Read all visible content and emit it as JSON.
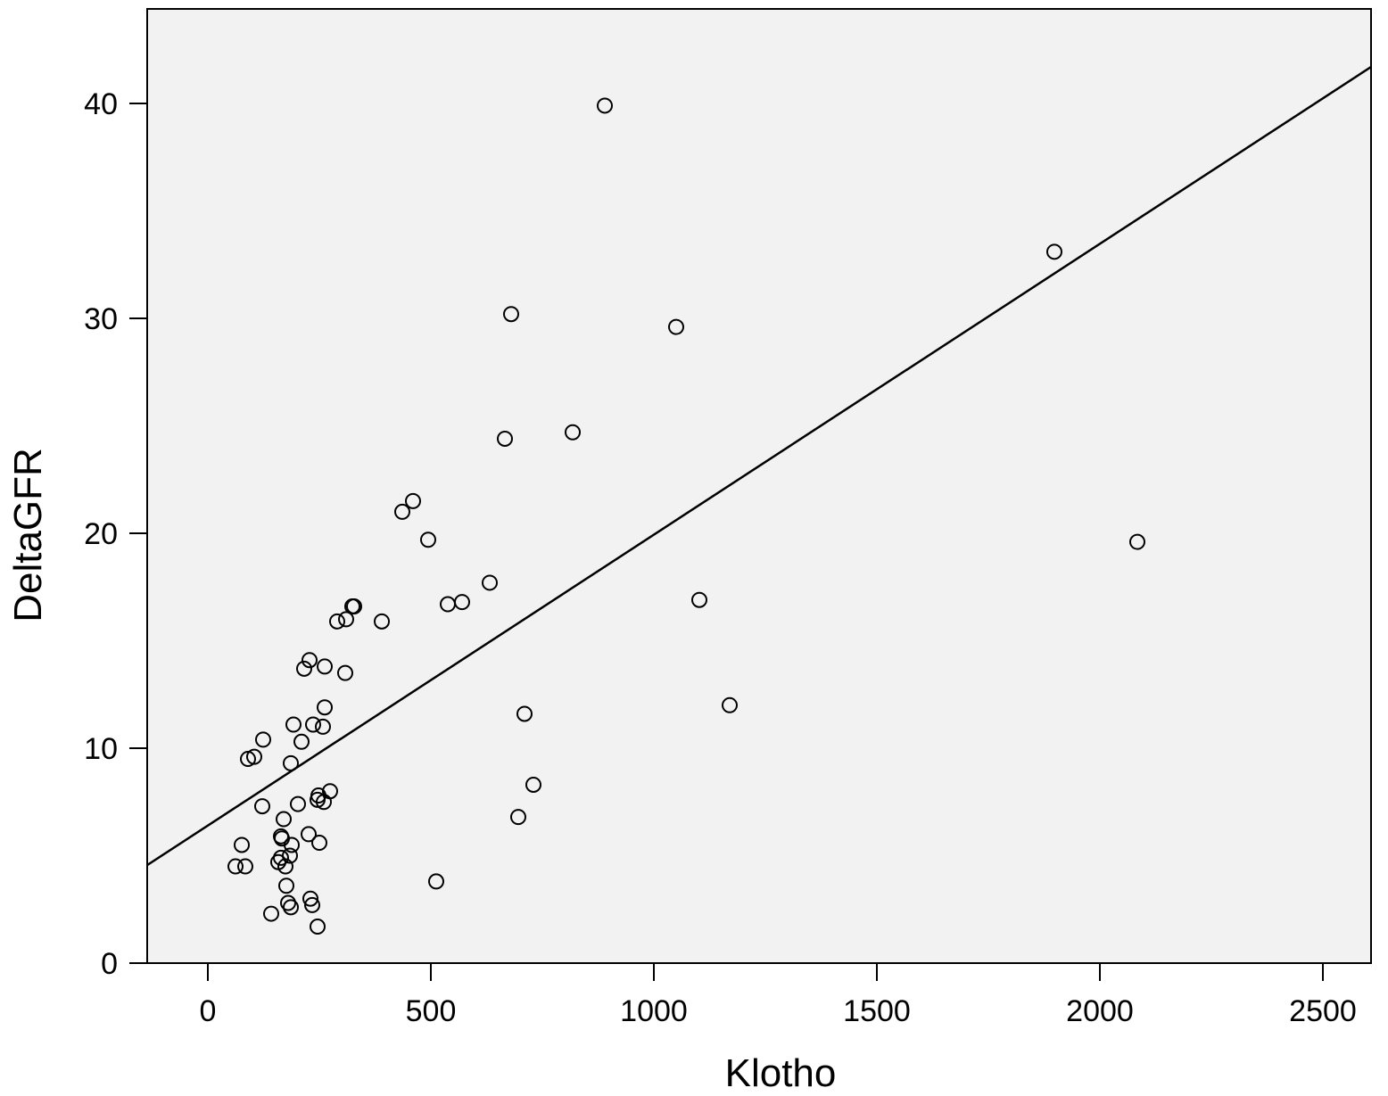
{
  "chart_data": {
    "type": "scatter",
    "x_label": "Klotho",
    "y_label": "DeltaGFR",
    "x": [
      890,
      1898,
      680,
      1050,
      666,
      818,
      460,
      436,
      494,
      2084,
      632,
      538,
      570,
      1102,
      324,
      328,
      290,
      310,
      390,
      228,
      216,
      262,
      308,
      262,
      710,
      1170,
      192,
      236,
      258,
      210,
      124,
      104,
      90,
      186,
      730,
      274,
      248,
      246,
      260,
      122,
      202,
      696,
      170,
      226,
      164,
      166,
      250,
      76,
      188,
      184,
      164,
      158,
      174,
      62,
      84,
      512,
      176,
      230,
      234,
      180,
      186,
      142,
      246
    ],
    "values": [
      39.9,
      33.1,
      30.2,
      29.6,
      24.4,
      24.7,
      21.5,
      21.0,
      19.7,
      19.6,
      17.7,
      16.7,
      16.8,
      16.9,
      16.6,
      16.6,
      15.9,
      16.0,
      15.9,
      14.1,
      13.7,
      13.8,
      13.5,
      11.9,
      11.6,
      12.0,
      11.1,
      11.1,
      11.0,
      10.3,
      10.4,
      9.6,
      9.5,
      9.3,
      8.3,
      8.0,
      7.8,
      7.6,
      7.5,
      7.3,
      7.4,
      6.8,
      6.7,
      6.0,
      5.9,
      5.8,
      5.6,
      5.5,
      5.5,
      5.0,
      4.9,
      4.7,
      4.5,
      4.5,
      4.5,
      3.8,
      3.6,
      3.0,
      2.7,
      2.8,
      2.6,
      2.3,
      1.7
    ],
    "fit_line": {
      "x": [
        -136,
        2608
      ],
      "values": [
        4.56,
        41.7
      ]
    },
    "color": "#000000",
    "background": "#f2f2f2",
    "xlim": [
      -136,
      2608
    ],
    "xticks": [
      0,
      500,
      1000,
      1500,
      2000,
      2500
    ],
    "ylim": [
      0,
      44.4
    ],
    "yticks": [
      0,
      10,
      20,
      30,
      40
    ]
  }
}
